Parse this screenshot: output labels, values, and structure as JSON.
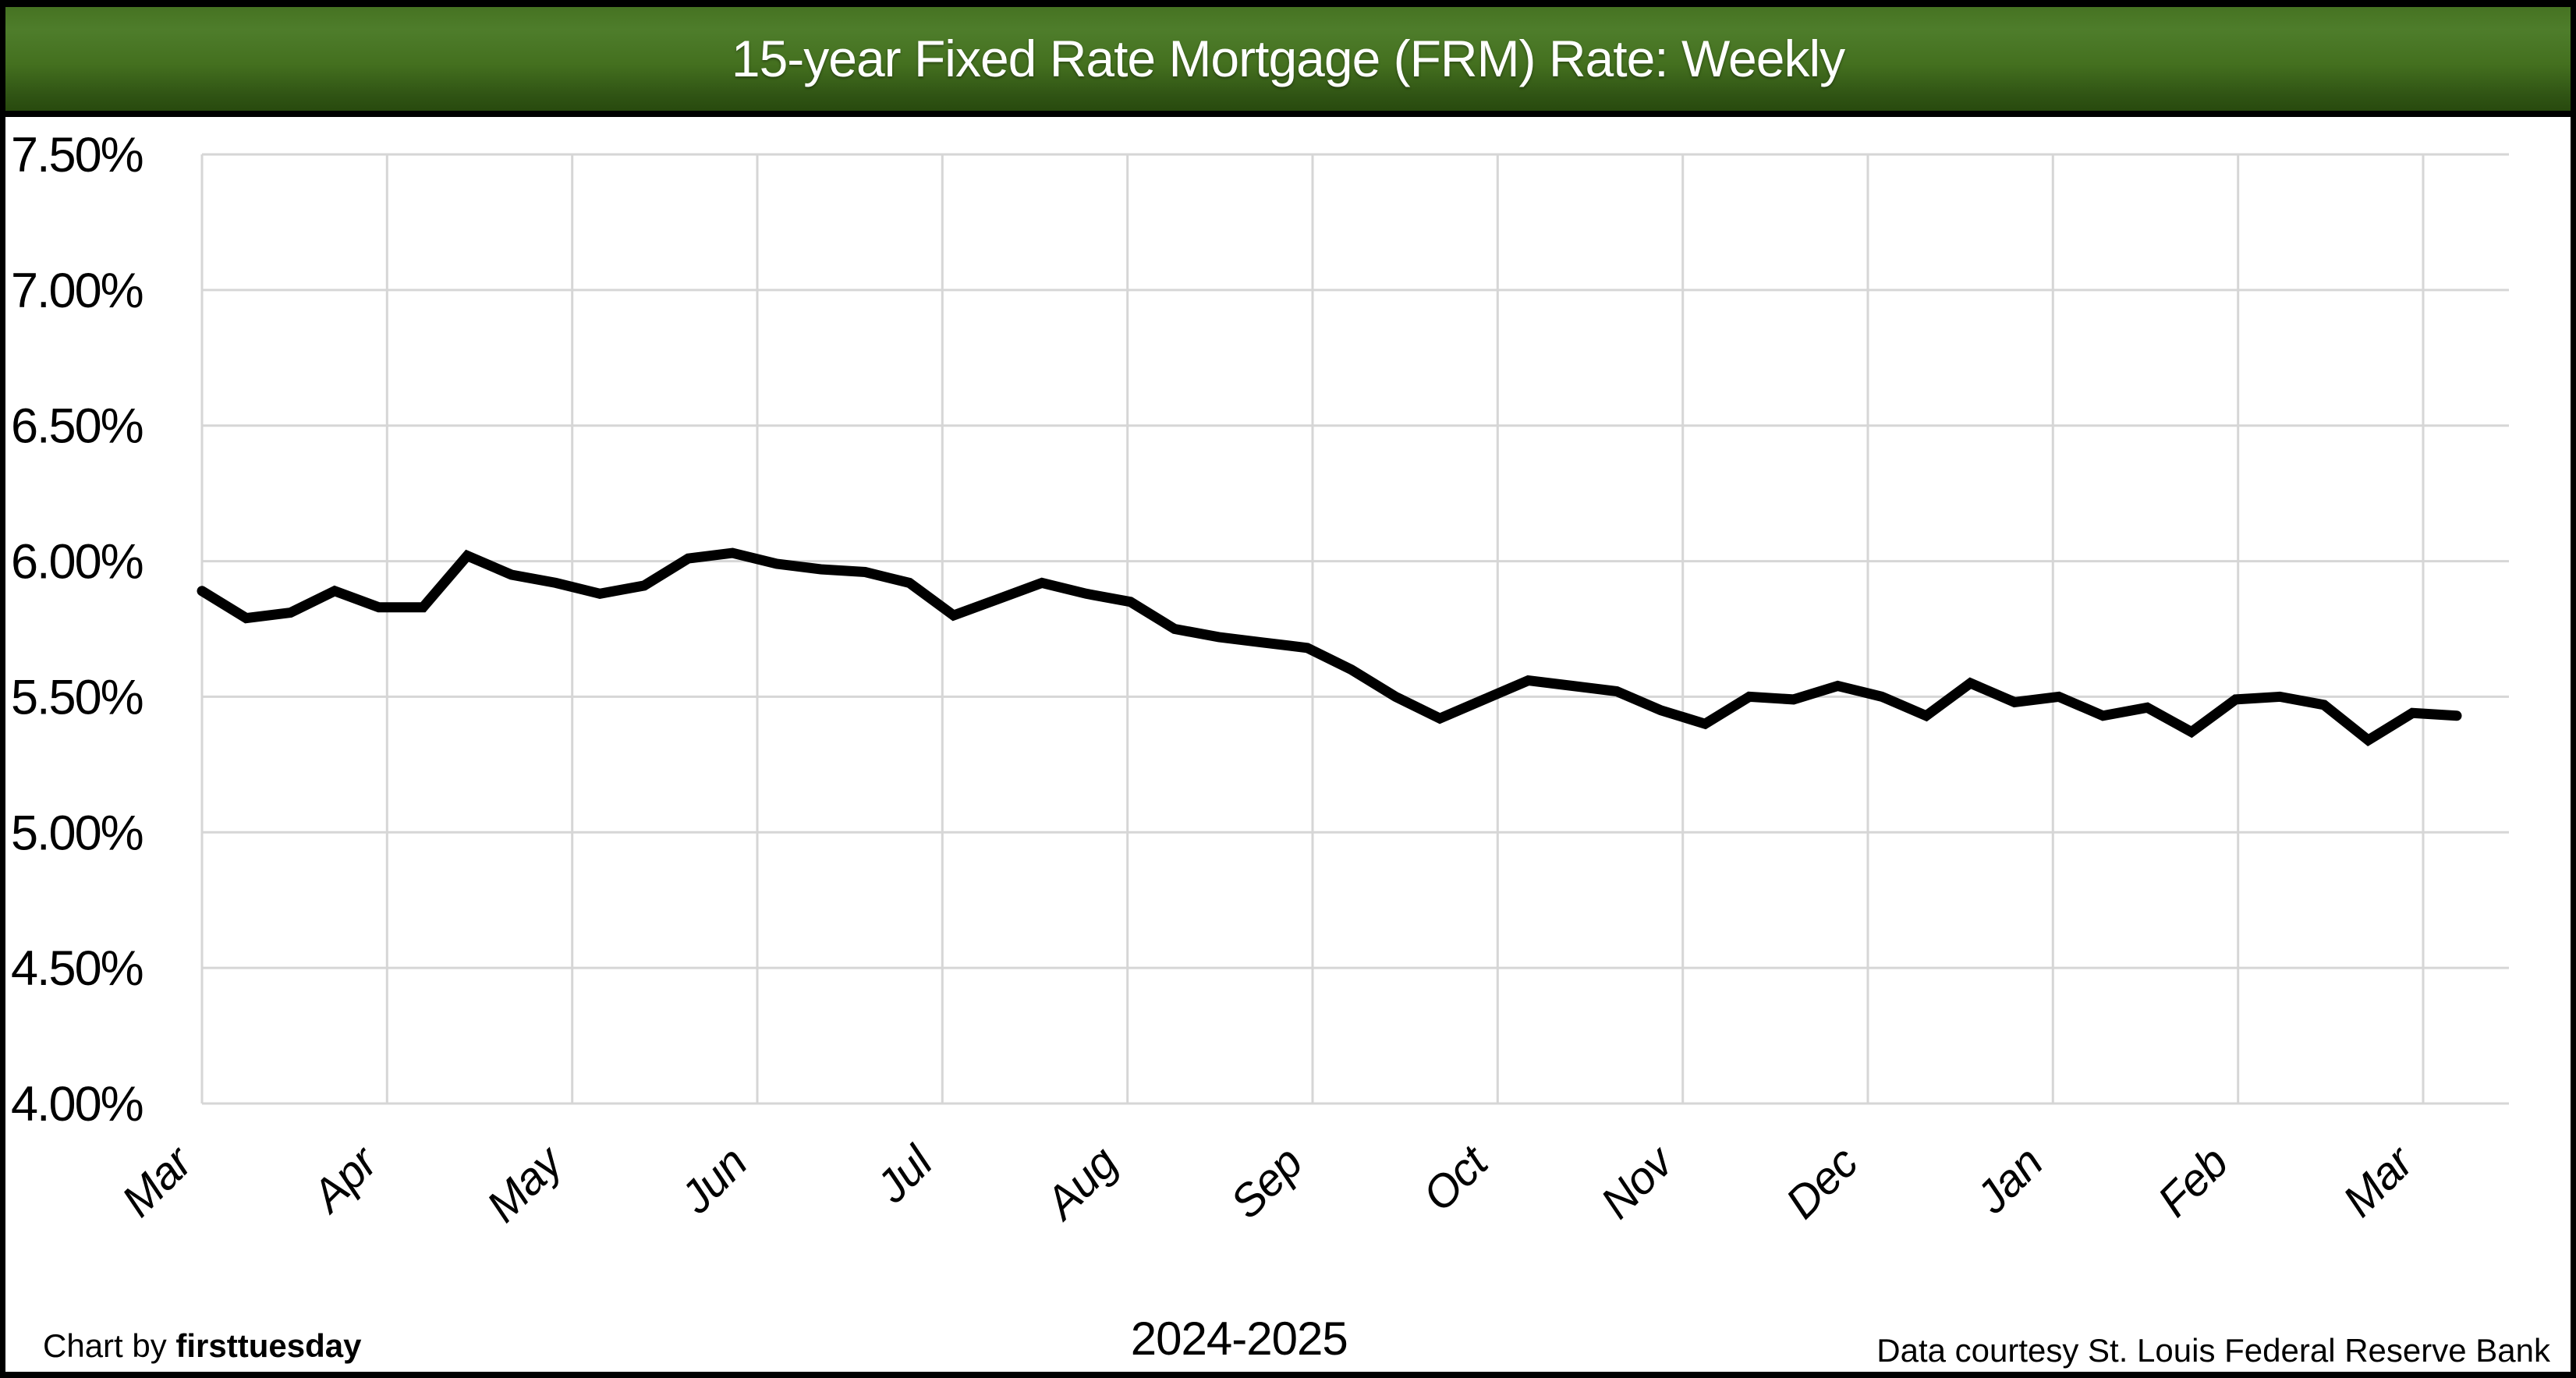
{
  "title": "15-year Fixed Rate Mortgage (FRM) Rate: Weekly",
  "footer": {
    "credit_prefix": "Chart by ",
    "credit_brand": "firsttuesday",
    "period": "2024-2025",
    "source": "Data courtesy St. Louis Federal Reserve Bank"
  },
  "colors": {
    "header_green_light": "#4e7d2b",
    "header_green_dark": "#284a0e",
    "grid": "#d6d6d6",
    "line": "#000000",
    "title_text": "#ffffff",
    "background": "#ffffff"
  },
  "chart_data": {
    "type": "line",
    "title": "15-year Fixed Rate Mortgage (FRM) Rate: Weekly",
    "xlabel": "2024-2025",
    "ylabel": "",
    "ylim": [
      4.0,
      7.5
    ],
    "y_step": 0.5,
    "grid": true,
    "legend_position": "none",
    "y_tick_labels": [
      "7.50%",
      "7.00%",
      "6.50%",
      "6.00%",
      "5.50%",
      "5.00%",
      "4.50%",
      "4.00%"
    ],
    "x_tick_labels": [
      "Mar",
      "Apr",
      "May",
      "Jun",
      "Jul",
      "Aug",
      "Sep",
      "Oct",
      "Nov",
      "Dec",
      "Jan",
      "Feb",
      "Mar"
    ],
    "series": [
      {
        "name": "15-year FRM rate (weekly)",
        "values": [
          5.89,
          5.79,
          5.81,
          5.89,
          5.83,
          5.83,
          6.02,
          5.95,
          5.92,
          5.88,
          5.91,
          6.01,
          6.03,
          5.99,
          5.97,
          5.96,
          5.92,
          5.8,
          5.86,
          5.92,
          5.88,
          5.85,
          5.75,
          5.72,
          5.7,
          5.68,
          5.6,
          5.5,
          5.42,
          5.49,
          5.56,
          5.54,
          5.52,
          5.45,
          5.4,
          5.5,
          5.49,
          5.54,
          5.5,
          5.43,
          5.55,
          5.48,
          5.5,
          5.43,
          5.46,
          5.37,
          5.49,
          5.5,
          5.47,
          5.34,
          5.44,
          5.43
        ]
      }
    ]
  }
}
